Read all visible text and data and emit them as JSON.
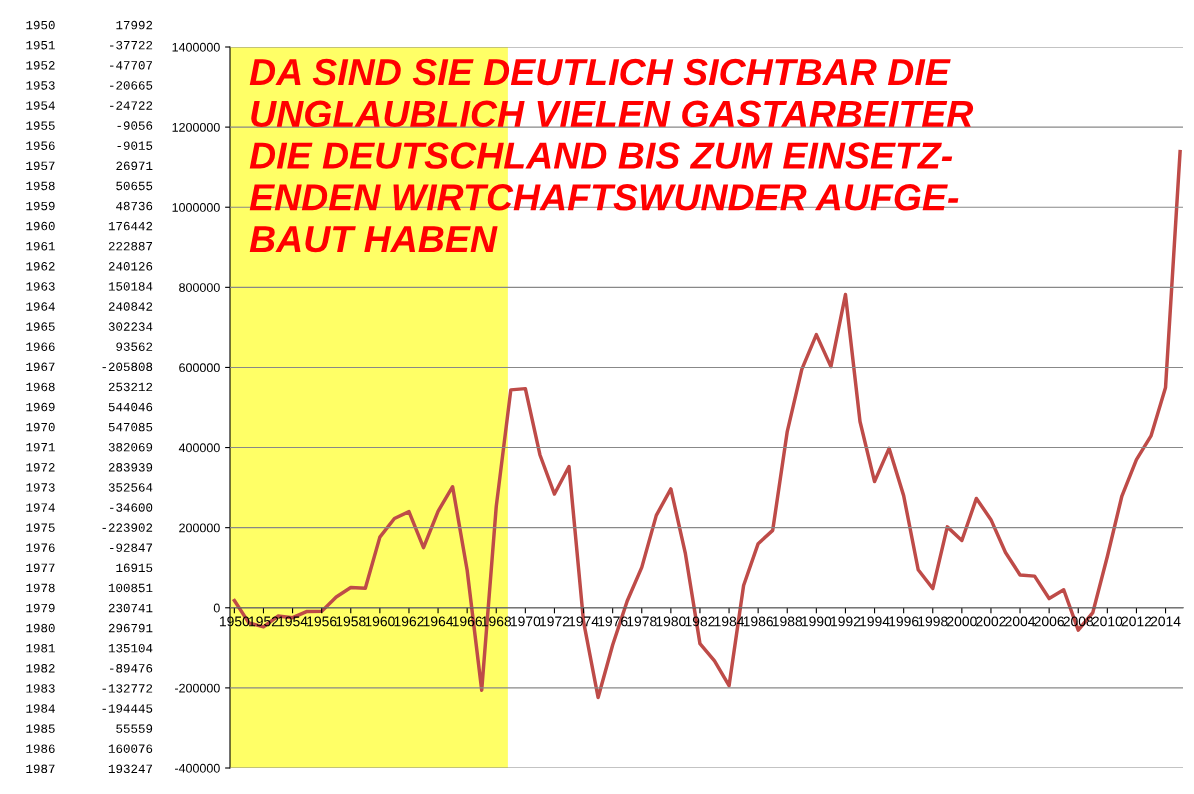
{
  "chart_data": [
    {
      "type": "line",
      "annotations": [
        "DA SIND SIE DEUTLICH SICHTBAR DIE\nUNGLAUBLICH VIELEN GASTARBEITER\nDIE DEUTSCHLAND BIS ZUM EINSETZ-\nENDEN WIRTCHAFTSWUNDER AUFGE-\nBAUT HABEN"
      ],
      "x": [
        1950,
        1951,
        1952,
        1953,
        1954,
        1955,
        1956,
        1957,
        1958,
        1959,
        1960,
        1961,
        1962,
        1963,
        1964,
        1965,
        1966,
        1967,
        1968,
        1969,
        1970,
        1971,
        1972,
        1973,
        1974,
        1975,
        1976,
        1977,
        1978,
        1979,
        1980,
        1981,
        1982,
        1983,
        1984,
        1985,
        1986,
        1987,
        1988,
        1989,
        1990,
        1991,
        1992,
        1993,
        1994,
        1995,
        1996,
        1997,
        1998,
        1999,
        2000,
        2001,
        2002,
        2003,
        2004,
        2005,
        2006,
        2007,
        2008,
        2009,
        2010,
        2011,
        2012,
        2013,
        2014,
        2015
      ],
      "series": [
        {
          "color": "#be4b48",
          "values": [
            17992,
            -37722,
            -47707,
            -20665,
            -24722,
            -9056,
            -9015,
            26971,
            50655,
            48736,
            176442,
            222887,
            240126,
            150184,
            240842,
            302234,
            93562,
            -205808,
            253212,
            544046,
            547085,
            382069,
            283939,
            352564,
            -34600,
            -223902,
            -92847,
            16915,
            100851,
            230741,
            296791,
            135104,
            -89476,
            -132772,
            -194445,
            55559,
            160076,
            193247,
            440000,
            595000,
            682000,
            602000,
            782000,
            465000,
            315000,
            398000,
            280000,
            95000,
            48000,
            202000,
            168000,
            273000,
            220000,
            138000,
            82000,
            79000,
            23000,
            45000,
            -56000,
            -12000,
            128000,
            279000,
            370000,
            429000,
            550000,
            1139000
          ]
        }
      ],
      "xlim": [
        1949.7,
        2015.2
      ],
      "xticks": [
        1950,
        1952,
        1954,
        1956,
        1958,
        1960,
        1962,
        1964,
        1966,
        1968,
        1970,
        1972,
        1974,
        1976,
        1978,
        1980,
        1982,
        1984,
        1986,
        1988,
        1990,
        1992,
        1994,
        1996,
        1998,
        2000,
        2002,
        2004,
        2006,
        2008,
        2010,
        2012,
        2014
      ],
      "ylim": [
        -400000,
        1400000
      ],
      "yticks": [
        -400000,
        -200000,
        0,
        200000,
        400000,
        600000,
        800000,
        1000000,
        1200000,
        1400000
      ],
      "bands": [
        {
          "axis": "x",
          "from": 1949.7,
          "to": 1968.8,
          "color": "#ffff66"
        }
      ],
      "grid": "y",
      "marker": "none",
      "line_style": "solid",
      "legend": false
    },
    {
      "type": "other",
      "annotations": [
        "1950 17992",
        "1951 -37722",
        "1952 -47707",
        "1953 -20665",
        "1954 -24722",
        "1955 -9056",
        "1956 -9015",
        "1957 26971",
        "1958 50655",
        "1959 48736",
        "1960 176442",
        "1961 222887",
        "1962 240126",
        "1963 150184",
        "1964 240842",
        "1965 302234",
        "1966 93562",
        "1967 -205808",
        "1968 253212",
        "1969 544046",
        "1970 547085",
        "1971 382069",
        "1972 283939",
        "1973 352564",
        "1974 -34600",
        "1975 -223902",
        "1976 -92847",
        "1977 16915",
        "1978 100851",
        "1979 230741",
        "1980 296791",
        "1981 135104",
        "1982 -89476",
        "1983 -132772",
        "1984 -194445",
        "1985 55559",
        "1986 160076",
        "1987 193247"
      ]
    }
  ]
}
